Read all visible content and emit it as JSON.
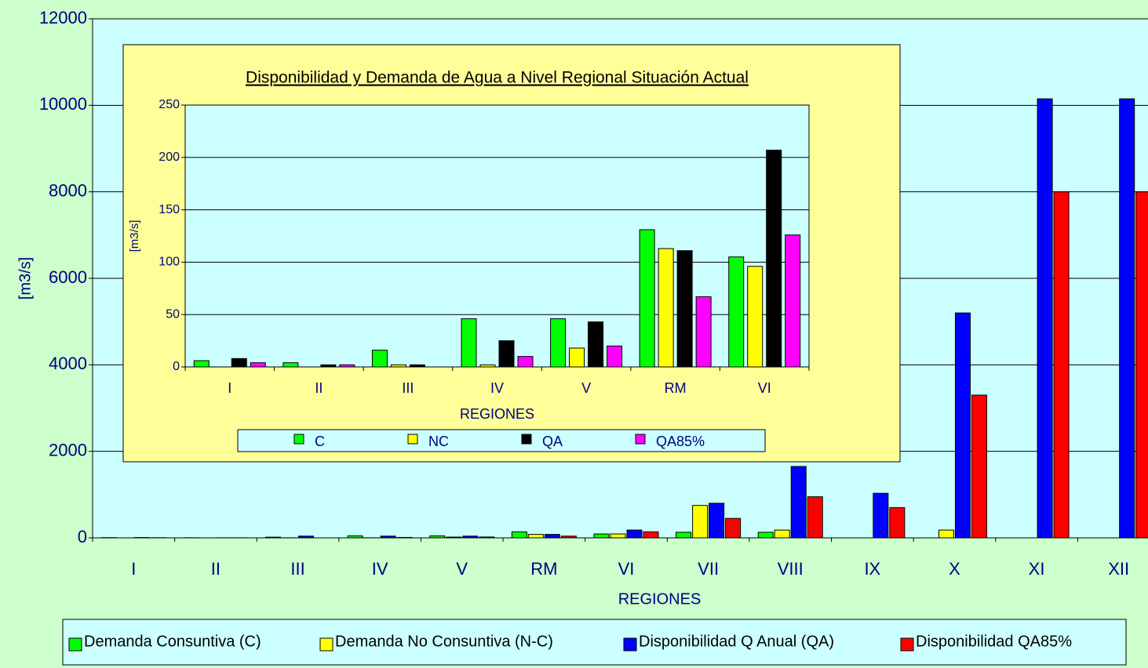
{
  "chart_data": [
    {
      "type": "bar",
      "x_label": "REGIONES",
      "y_label": "[m3/s]",
      "categories": [
        "I",
        "II",
        "III",
        "IV",
        "V",
        "RM",
        "VI",
        "VII",
        "VIII",
        "IX",
        "X",
        "XI",
        "XII"
      ],
      "series": [
        {
          "name": "Demanda Consuntiva (C)",
          "color": "#00ff00",
          "values": [
            5,
            3,
            16,
            47,
            46,
            140,
            90,
            130,
            130,
            0,
            0,
            0,
            0
          ]
        },
        {
          "name": "Demanda No Consuntiva (N-C)",
          "color": "#ffff00",
          "values": [
            0,
            0,
            2,
            2,
            18,
            80,
            90,
            750,
            180,
            0,
            180,
            0,
            0
          ]
        },
        {
          "name": "Disponibilidad Q Anual (QA)",
          "color": "#0000ff",
          "values": [
            8,
            2,
            40,
            40,
            40,
            80,
            180,
            800,
            1650,
            1030,
            5200,
            10150,
            10150
          ]
        },
        {
          "name": "Disponibilidad QA85%",
          "color": "#ff0000",
          "values": [
            4,
            2,
            0,
            10,
            20,
            40,
            140,
            450,
            950,
            700,
            3300,
            8000,
            8000
          ]
        }
      ],
      "ylim": [
        0,
        12000
      ],
      "yticks": [
        0,
        2000,
        4000,
        6000,
        8000,
        10000,
        12000
      ],
      "grid": true
    },
    {
      "type": "bar",
      "title": "Disponibilidad y Demanda de Agua a Nivel Regional Situación Actual",
      "x_label": "REGIONES",
      "y_label": "[m3/s]",
      "categories": [
        "I",
        "II",
        "III",
        "IV",
        "V",
        "RM",
        "VI"
      ],
      "series": [
        {
          "name": "C",
          "color": "#00ff00",
          "values": [
            6,
            4,
            16,
            46,
            46,
            131,
            105
          ]
        },
        {
          "name": "NC",
          "color": "#ffff00",
          "values": [
            0,
            0,
            2,
            2,
            18,
            113,
            96
          ]
        },
        {
          "name": "QA",
          "color": "#000000",
          "values": [
            8,
            2,
            2,
            25,
            43,
            111,
            207
          ]
        },
        {
          "name": "QA85%",
          "color": "#ff00ff",
          "values": [
            4,
            2,
            0,
            10,
            20,
            67,
            126
          ]
        }
      ],
      "ylim": [
        0,
        250
      ],
      "yticks": [
        0,
        50,
        100,
        150,
        200,
        250
      ],
      "grid": true
    }
  ]
}
